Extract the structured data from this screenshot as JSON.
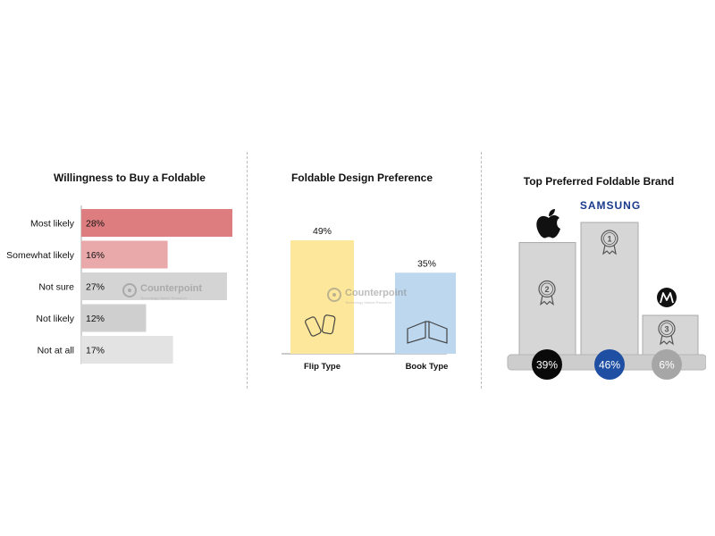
{
  "chart_data": [
    {
      "type": "bar",
      "orientation": "horizontal",
      "title": "Willingness to Buy a Foldable",
      "categories": [
        "Most likely",
        "Somewhat likely",
        "Not sure",
        "Not likely",
        "Not at all"
      ],
      "values": [
        28,
        16,
        27,
        12,
        17
      ],
      "value_labels": [
        "28%",
        "16%",
        "27%",
        "12%",
        "17%"
      ],
      "colors": [
        "#de7d7f",
        "#e9a9ab",
        "#d4d4d4",
        "#cfcfcf",
        "#e3e3e3"
      ],
      "xlim": [
        0,
        28
      ]
    },
    {
      "type": "bar",
      "title": "Foldable Design Preference",
      "categories": [
        "Flip Type",
        "Book Type"
      ],
      "values": [
        49,
        35
      ],
      "value_labels": [
        "49%",
        "35%"
      ],
      "colors": [
        "#fde79a",
        "#bcd7ee"
      ],
      "ylim": [
        0,
        49
      ]
    },
    {
      "type": "bar",
      "title": "Top Preferred Foldable Brand",
      "categories": [
        "Apple",
        "Samsung",
        "Motorola"
      ],
      "ranks": [
        "2",
        "1",
        "3"
      ],
      "values": [
        39,
        46,
        6
      ],
      "value_labels": [
        "39%",
        "46%",
        "6%"
      ],
      "brand_labels": [
        "",
        "SAMSUNG",
        ""
      ],
      "icons": [
        "apple-logo-icon",
        "samsung-wordmark",
        "motorola-logo-icon"
      ],
      "badge_colors": [
        "#0a0a0a",
        "#1f4fa3",
        "#a6a6a6"
      ],
      "podium_color": "#d6d6d6"
    }
  ],
  "watermark": {
    "name": "Counterpoint",
    "tagline": "Technology Market Research"
  }
}
